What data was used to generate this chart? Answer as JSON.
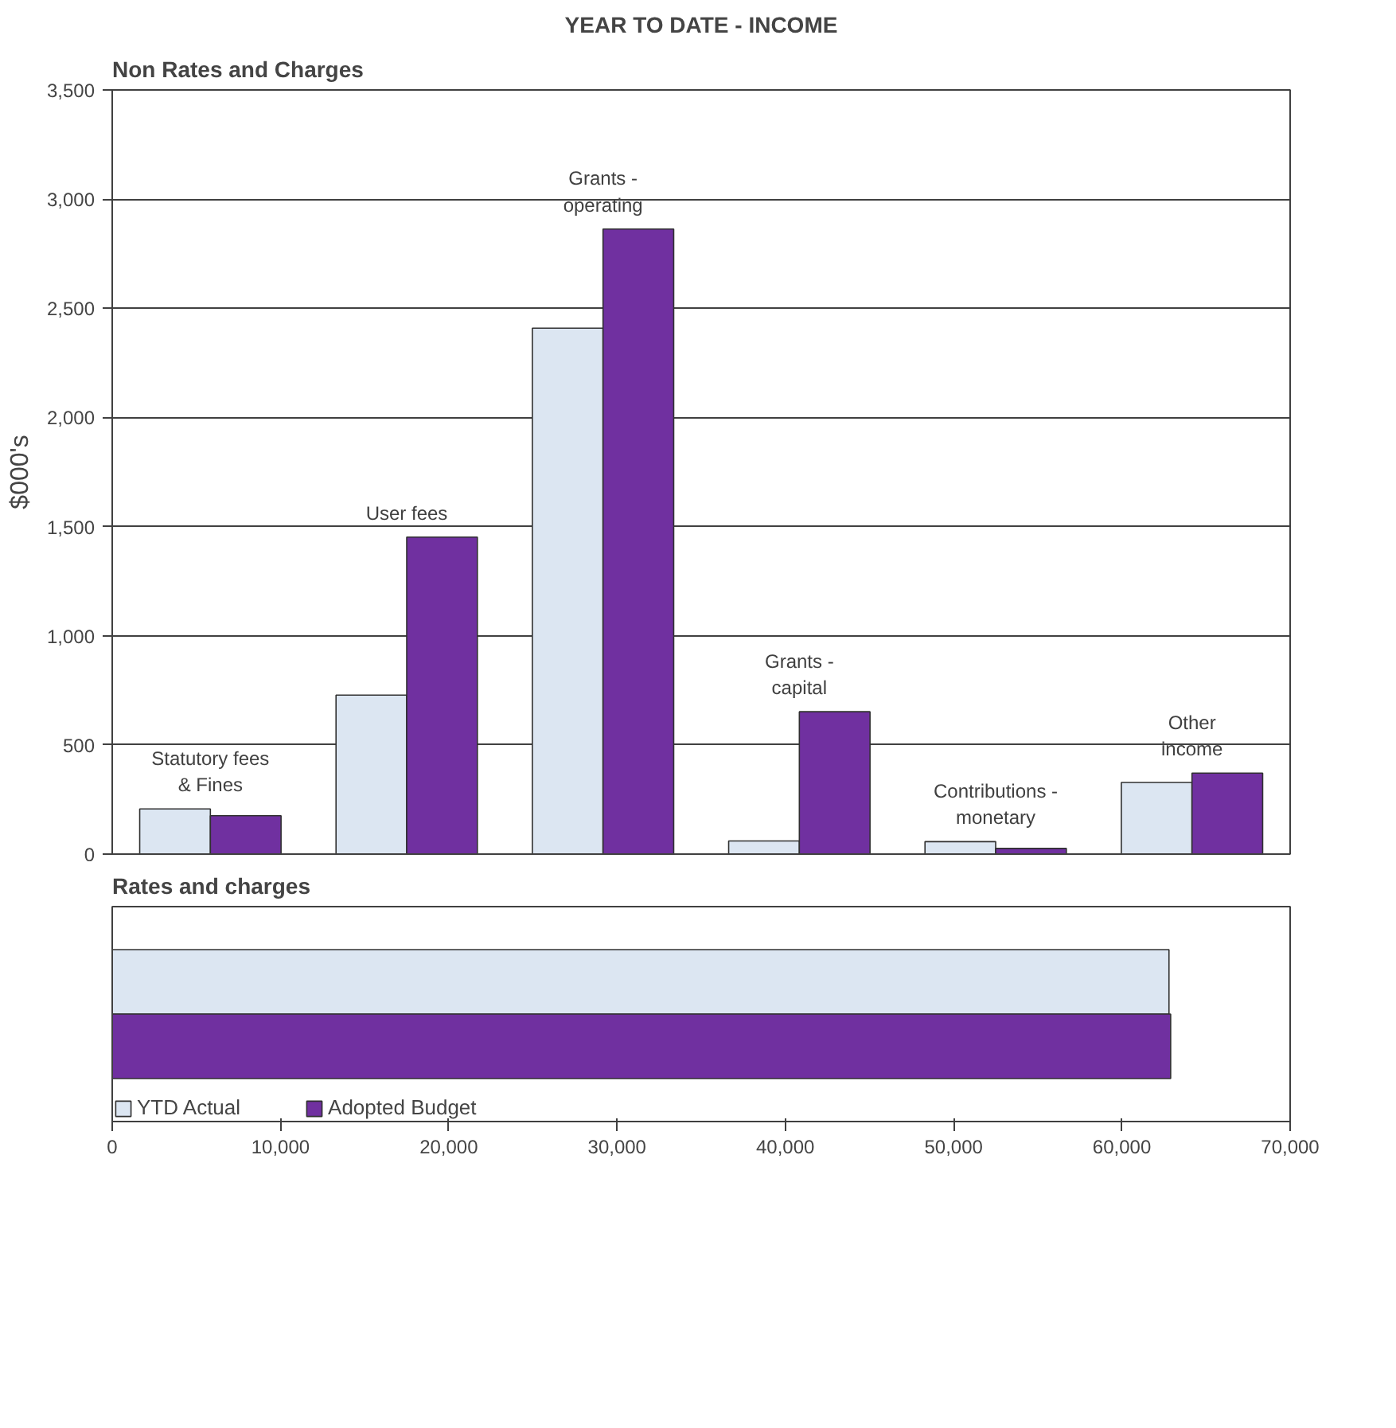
{
  "chart_data": [
    {
      "type": "bar",
      "title": "YEAR TO DATE - INCOME",
      "subtitle": "Non Rates and Charges",
      "ylabel": "$000's",
      "categories": [
        "Statutory fees\n& Fines",
        "User fees",
        "Grants -\noperating",
        "Grants -\ncapital",
        "Contributions -\nmonetary",
        "Other\nincome"
      ],
      "series": [
        {
          "color": "#dce6f2",
          "values": [
            207,
            728,
            2409,
            60,
            57,
            328
          ]
        },
        {
          "color": "#7030a0",
          "values": [
            176,
            1452,
            2863,
            652,
            26,
            371
          ]
        }
      ],
      "ylim": [
        0,
        3500
      ],
      "yticks": [
        0,
        {
          "value": 500,
          "label": "500"
        },
        {
          "value": 1000,
          "label": "1,000"
        },
        {
          "value": 1500,
          "label": "1,500"
        },
        {
          "value": 2000,
          "label": "2,000"
        },
        {
          "value": 2500,
          "label": "2,500"
        },
        {
          "value": 3000,
          "label": "3,000"
        },
        {
          "value": 3500,
          "label": "3,500"
        }
      ],
      "grid": "y",
      "tick_labels": "y"
    },
    {
      "type": "bar",
      "title": "Rates and charges",
      "orientation": "horizontal",
      "categories": [
        null
      ],
      "series": [
        {
          "name": "YTD Actual",
          "color": "#dce6f2",
          "values": [
            62800
          ]
        },
        {
          "name": "Adopted Budget",
          "color": "#7030a0",
          "values": [
            62900
          ]
        }
      ],
      "xlim": [
        0,
        70000
      ],
      "xticks": [
        0,
        {
          "value": 10000,
          "label": "10,000"
        },
        {
          "value": 20000,
          "label": "20,000"
        },
        {
          "value": 30000,
          "label": "30,000"
        },
        {
          "value": 40000,
          "label": "40,000"
        },
        {
          "value": 50000,
          "label": "50,000"
        },
        {
          "value": 60000,
          "label": "60,000"
        },
        {
          "value": 70000,
          "label": "70,000"
        }
      ],
      "grid": false,
      "tick_labels": "x",
      "legend": "bottom"
    }
  ]
}
